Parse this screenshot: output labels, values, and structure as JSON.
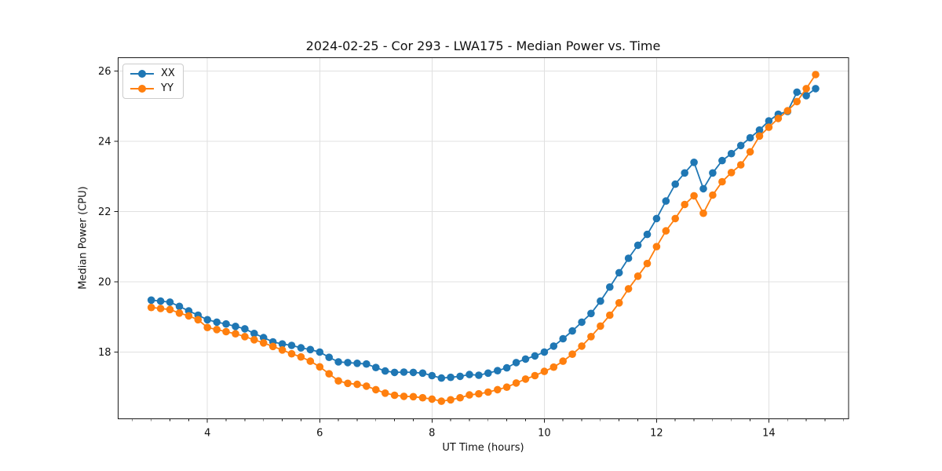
{
  "chart_data": {
    "type": "line",
    "title": "2024-02-25 - Cor 293 - LWA175 - Median Power vs. Time",
    "xlabel": "UT Time (hours)",
    "ylabel": "Median Power (CPU)",
    "xlim": [
      2.41,
      15.42
    ],
    "ylim": [
      16.1,
      26.38
    ],
    "x_ticks": [
      4,
      6,
      8,
      10,
      12,
      14
    ],
    "y_ticks": [
      18,
      20,
      22,
      24,
      26
    ],
    "x_minor_step": 0.3333,
    "grid": true,
    "grid_color": "#e0e0e0",
    "legend_position": "upper left",
    "x": [
      3.0,
      3.167,
      3.333,
      3.5,
      3.667,
      3.833,
      4.0,
      4.167,
      4.333,
      4.5,
      4.667,
      4.833,
      5.0,
      5.167,
      5.333,
      5.5,
      5.667,
      5.833,
      6.0,
      6.167,
      6.333,
      6.5,
      6.667,
      6.833,
      7.0,
      7.167,
      7.333,
      7.5,
      7.667,
      7.833,
      8.0,
      8.167,
      8.333,
      8.5,
      8.667,
      8.833,
      9.0,
      9.167,
      9.333,
      9.5,
      9.667,
      9.833,
      10.0,
      10.167,
      10.333,
      10.5,
      10.667,
      10.833,
      11.0,
      11.167,
      11.333,
      11.5,
      11.667,
      11.833,
      12.0,
      12.167,
      12.333,
      12.5,
      12.667,
      12.833,
      13.0,
      13.167,
      13.333,
      13.5,
      13.667,
      13.833,
      14.0,
      14.167,
      14.333,
      14.5,
      14.667,
      14.833
    ],
    "series": [
      {
        "name": "XX",
        "color": "#1f77b4",
        "marker": "circle",
        "values": [
          19.48,
          19.45,
          19.42,
          19.3,
          19.17,
          19.05,
          18.92,
          18.85,
          18.8,
          18.73,
          18.66,
          18.53,
          18.41,
          18.29,
          18.23,
          18.19,
          18.12,
          18.07,
          18.0,
          17.85,
          17.72,
          17.7,
          17.68,
          17.66,
          17.56,
          17.46,
          17.42,
          17.43,
          17.42,
          17.4,
          17.33,
          17.26,
          17.28,
          17.31,
          17.36,
          17.34,
          17.4,
          17.47,
          17.55,
          17.7,
          17.8,
          17.89,
          18.0,
          18.17,
          18.38,
          18.6,
          18.85,
          19.1,
          19.45,
          19.85,
          20.26,
          20.67,
          21.04,
          21.35,
          21.8,
          22.3,
          22.78,
          23.1,
          23.4,
          22.65,
          23.1,
          23.45,
          23.65,
          23.88,
          24.1,
          24.32,
          24.58,
          24.77,
          24.85,
          25.4,
          25.3,
          25.5
        ]
      },
      {
        "name": "YY",
        "color": "#ff7f0e",
        "marker": "circle",
        "values": [
          19.27,
          19.24,
          19.21,
          19.11,
          19.03,
          18.92,
          18.7,
          18.64,
          18.58,
          18.52,
          18.44,
          18.35,
          18.26,
          18.16,
          18.06,
          17.95,
          17.86,
          17.74,
          17.58,
          17.38,
          17.18,
          17.11,
          17.08,
          17.03,
          16.93,
          16.83,
          16.77,
          16.74,
          16.73,
          16.7,
          16.66,
          16.6,
          16.64,
          16.7,
          16.78,
          16.81,
          16.86,
          16.93,
          17.0,
          17.12,
          17.23,
          17.33,
          17.45,
          17.57,
          17.74,
          17.94,
          18.17,
          18.44,
          18.74,
          19.05,
          19.4,
          19.8,
          20.16,
          20.52,
          21.0,
          21.45,
          21.8,
          22.2,
          22.45,
          21.95,
          22.47,
          22.85,
          23.11,
          23.33,
          23.7,
          24.15,
          24.4,
          24.65,
          24.87,
          25.13,
          25.5,
          25.9
        ]
      }
    ]
  }
}
